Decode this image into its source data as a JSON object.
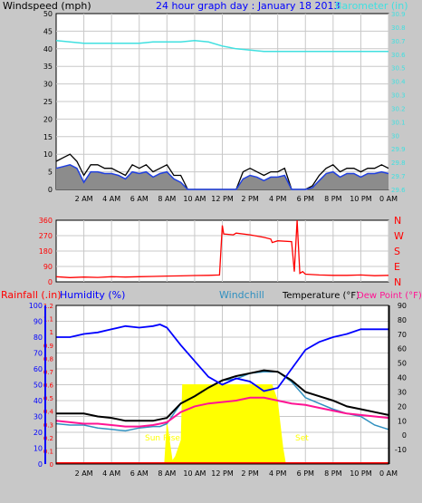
{
  "title": "24 hour graph day : January 18 2013",
  "colors": {
    "background": "#c8c8c8",
    "plot": "#ffffff",
    "grid": "#c8c8c8",
    "wind_gust": "#000000",
    "wind_avg": "#2040e0",
    "wind_fill": "#8c8c8c",
    "barometer": "#40e0e0",
    "direction": "#ff0000",
    "humidity": "#0000ff",
    "windchill": "#3090c0",
    "temperature": "#000000",
    "dewpoint": "#ff1493",
    "solar": "#ffff00",
    "rain": "#ff0000"
  },
  "x_ticks": [
    "2 AM",
    "4 AM",
    "6 AM",
    "8 AM",
    "10 AM",
    "12 PM",
    "2 PM",
    "4 PM",
    "6 PM",
    "8 PM",
    "10 PM",
    "0 AM"
  ],
  "chart_data": [
    {
      "type": "line",
      "ylabel_left": "Windspeed (mph)",
      "ylabel_right": "Barometer (in)",
      "ylim_left": [
        0,
        50
      ],
      "ylim_right": [
        29.6,
        30.9
      ],
      "left_ticks": [
        0,
        5,
        10,
        15,
        20,
        25,
        30,
        35,
        40,
        45,
        50
      ],
      "right_ticks": [
        "29.6",
        "29.7",
        "29.8",
        "29.9",
        "30",
        "30.1",
        "30.2",
        "30.3",
        "30.4",
        "30.5",
        "30.6",
        "30.7",
        "30.8",
        "30.9"
      ],
      "xlim_hours": [
        0,
        24
      ],
      "series": [
        {
          "name": "Barometer (in)",
          "axis": "right",
          "x": [
            0,
            1,
            2,
            3,
            4,
            5,
            6,
            7,
            8,
            9,
            10,
            11,
            12,
            13,
            14,
            15,
            16,
            17,
            18,
            19,
            20,
            21,
            22,
            23,
            24
          ],
          "y": [
            30.7,
            30.69,
            30.68,
            30.68,
            30.68,
            30.68,
            30.68,
            30.69,
            30.69,
            30.69,
            30.7,
            30.69,
            30.66,
            30.64,
            30.63,
            30.62,
            30.62,
            30.62,
            30.62,
            30.62,
            30.62,
            30.62,
            30.62,
            30.62,
            30.62
          ]
        },
        {
          "axis": "left",
          "role": "gust",
          "x": [
            0,
            0.5,
            1,
            1.5,
            2,
            2.5,
            3,
            3.5,
            4,
            4.5,
            5,
            5.5,
            6,
            6.5,
            7,
            7.5,
            8,
            8.5,
            9,
            9.5,
            10,
            10.5,
            11,
            11.5,
            12,
            12.5,
            13,
            13.5,
            14,
            14.5,
            15,
            15.5,
            16,
            16.5,
            17,
            17.5,
            18,
            18.5,
            19,
            19.5,
            20,
            20.5,
            21,
            21.5,
            22,
            22.5,
            23,
            23.5,
            24
          ],
          "y": [
            8,
            9,
            10,
            8,
            4,
            7,
            7,
            6,
            6,
            5,
            4,
            7,
            6,
            7,
            5,
            6,
            7,
            4,
            4,
            0,
            0,
            0,
            0,
            0,
            0,
            0,
            0,
            5,
            6,
            5,
            4,
            5,
            5,
            6,
            0,
            0,
            0,
            1,
            4,
            6,
            7,
            5,
            6,
            6,
            5,
            6,
            6,
            7,
            6
          ]
        },
        {
          "axis": "left",
          "role": "average",
          "x": [
            0,
            0.5,
            1,
            1.5,
            2,
            2.5,
            3,
            3.5,
            4,
            4.5,
            5,
            5.5,
            6,
            6.5,
            7,
            7.5,
            8,
            8.5,
            9,
            9.5,
            10,
            10.5,
            11,
            11.5,
            12,
            12.5,
            13,
            13.5,
            14,
            14.5,
            15,
            15.5,
            16,
            16.5,
            17,
            17.5,
            18,
            18.5,
            19,
            19.5,
            20,
            20.5,
            21,
            21.5,
            22,
            22.5,
            23,
            23.5,
            24
          ],
          "y": [
            6,
            6.5,
            7,
            6,
            2,
            5,
            5,
            4.5,
            4.5,
            4,
            3,
            5,
            4.5,
            5,
            3.5,
            4.5,
            5,
            3,
            2,
            0,
            0,
            0,
            0,
            0,
            0,
            0,
            0,
            3,
            4,
            3.5,
            2.5,
            3.5,
            3.5,
            4,
            0,
            0,
            0,
            0.5,
            2.5,
            4.5,
            5,
            3.5,
            4.5,
            4.5,
            3.5,
            4.5,
            4.5,
            5,
            4.5
          ]
        }
      ]
    },
    {
      "type": "line",
      "ylim": [
        0,
        360
      ],
      "left_ticks": [
        0,
        90,
        180,
        270,
        360
      ],
      "right_ticks": [
        "N",
        "E",
        "S",
        "W",
        "N"
      ],
      "xlim_hours": [
        0,
        24
      ],
      "series": [
        {
          "name": "Wind direction",
          "x": [
            0,
            1,
            2,
            3,
            4,
            5,
            6,
            7,
            8,
            9,
            10,
            11,
            11.8,
            12.0,
            12.1,
            12.8,
            13,
            14,
            15,
            15.5,
            15.6,
            16,
            17,
            17.2,
            17.4,
            17.6,
            17.8,
            18,
            19,
            20,
            21,
            22,
            23,
            24
          ],
          "y": [
            30,
            25,
            28,
            26,
            30,
            28,
            30,
            32,
            34,
            35,
            37,
            38,
            40,
            330,
            280,
            275,
            285,
            275,
            260,
            250,
            230,
            240,
            235,
            60,
            360,
            50,
            60,
            45,
            40,
            38,
            38,
            40,
            36,
            38
          ]
        }
      ]
    },
    {
      "type": "line",
      "legend": [
        "Rainfall (.in)",
        "Humidity (%)",
        "Windchill",
        "Temperature (°F)",
        "Dew Point (°F)"
      ],
      "ylim_rain": [
        0,
        1.2
      ],
      "ylim_humidity": [
        0,
        100
      ],
      "ylim_temp": [
        -20,
        90
      ],
      "rain_ticks": [
        "0",
        "0.1",
        "0.2",
        "0.3",
        "0.4",
        "0.5",
        "0.6",
        "0.7",
        "0.8",
        "0.9",
        "1",
        "1.1",
        "1.2"
      ],
      "humidity_ticks": [
        0,
        10,
        20,
        30,
        40,
        50,
        60,
        70,
        80,
        90,
        100
      ],
      "temp_ticks": [
        -10,
        0,
        10,
        20,
        30,
        40,
        50,
        60,
        70,
        80,
        90
      ],
      "xlim_hours": [
        0,
        24
      ],
      "annotations": [
        "Sun Rise",
        "Set"
      ],
      "series": [
        {
          "name": "Humidity (%)",
          "axis": "humidity",
          "x": [
            0,
            1,
            2,
            3,
            4,
            5,
            6,
            7,
            7.5,
            8,
            9,
            10,
            11,
            12,
            13,
            14,
            15,
            16,
            17,
            18,
            19,
            20,
            21,
            22,
            23,
            24
          ],
          "y": [
            80,
            80,
            82,
            83,
            85,
            87,
            86,
            87,
            88,
            86,
            75,
            65,
            55,
            50,
            54,
            52,
            46,
            48,
            60,
            72,
            77,
            80,
            82,
            85,
            85,
            85
          ]
        },
        {
          "name": "Temperature (°F)",
          "axis": "temp",
          "x": [
            0,
            1,
            2,
            3,
            4,
            5,
            6,
            7,
            7.5,
            8,
            9,
            10,
            11,
            12,
            13,
            14,
            15,
            16,
            17,
            18,
            19,
            20,
            21,
            22,
            23,
            24
          ],
          "y": [
            15,
            15,
            15,
            13,
            12,
            10,
            10,
            10,
            11,
            12,
            22,
            27,
            33,
            38,
            41,
            43,
            45,
            44,
            38,
            30,
            27,
            24,
            20,
            18,
            16,
            14
          ]
        },
        {
          "name": "Dew Point (°F)",
          "axis": "temp",
          "x": [
            0,
            1,
            2,
            3,
            4,
            5,
            6,
            7,
            7.5,
            8,
            9,
            10,
            11,
            12,
            13,
            14,
            15,
            16,
            17,
            18,
            19,
            20,
            21,
            22,
            23,
            24
          ],
          "y": [
            10,
            9,
            8,
            8,
            7,
            6,
            6,
            7,
            8,
            9,
            16,
            20,
            22,
            23,
            24,
            26,
            26,
            24,
            22,
            21,
            19,
            17,
            15,
            14,
            13,
            12
          ]
        },
        {
          "name": "Windchill",
          "axis": "temp",
          "x": [
            0,
            1,
            2,
            3,
            4,
            5,
            6,
            7,
            7.5,
            8,
            9,
            10,
            11,
            12,
            13,
            14,
            15,
            16,
            17,
            18,
            19,
            20,
            21,
            22,
            23,
            24
          ],
          "y": [
            8,
            7,
            7,
            5,
            4,
            3,
            5,
            6,
            6,
            8,
            22,
            27,
            33,
            38,
            39,
            43,
            44,
            44,
            37,
            26,
            22,
            18,
            15,
            13,
            7,
            4
          ]
        },
        {
          "name": "Solar radiation (relative)",
          "axis": "solar",
          "x": [
            0,
            7.8,
            8.0,
            8.4,
            8.6,
            9.0,
            9.1,
            15.6,
            16.0,
            16.2,
            16.4,
            16.6,
            24
          ],
          "y": [
            0,
            0,
            0.55,
            0.05,
            0.1,
            0.3,
            1,
            1,
            0.8,
            0.5,
            0.2,
            0,
            0
          ]
        },
        {
          "name": "Rainfall (.in)",
          "axis": "rain",
          "x": [
            0,
            24
          ],
          "y": [
            0,
            0
          ]
        }
      ]
    }
  ]
}
